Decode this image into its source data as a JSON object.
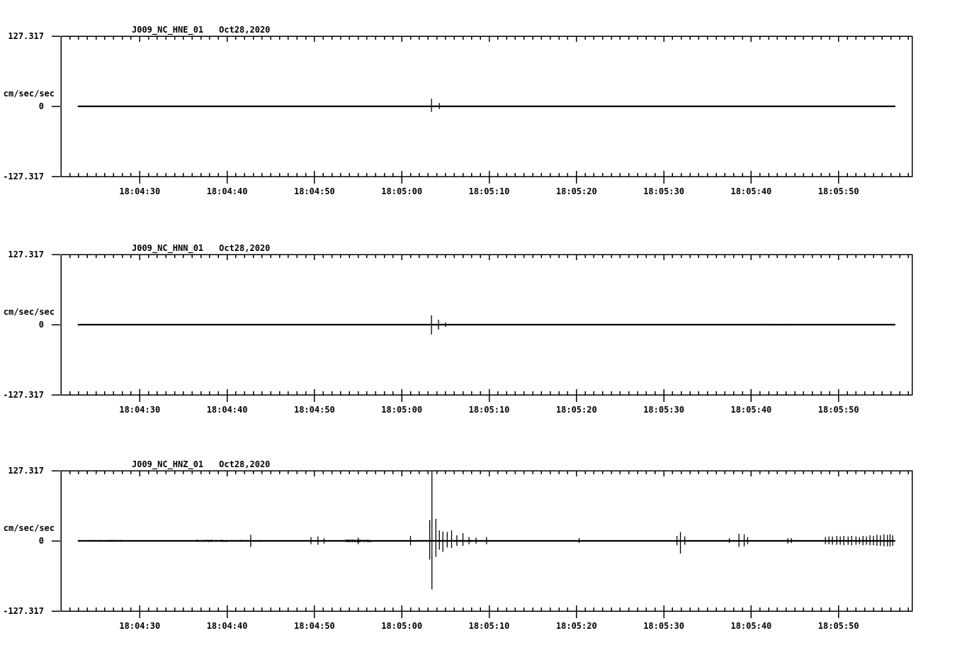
{
  "page": {
    "background": "#ffffff",
    "ink": "#000000"
  },
  "chart_data": [
    {
      "type": "line",
      "title": "J009_NC_HNE_01",
      "date": "Oct28,2020",
      "ylabel": "cm/sec/sec",
      "ylim": [
        -127.317,
        127.317
      ],
      "y_axis": {
        "max_label": "127.317",
        "zero_label": "0",
        "min_label": "-127.317"
      },
      "x_range_seconds": [
        21,
        118
      ],
      "x_tick_seconds": [
        30,
        40,
        50,
        60,
        70,
        80,
        90,
        100,
        110
      ],
      "x_tick_labels": [
        "18:04:30",
        "18:04:40",
        "18:04:50",
        "18:05:00",
        "18:05:10",
        "18:05:20",
        "18:05:30",
        "18:05:40",
        "18:05:50"
      ],
      "trace": {
        "start": 22.9,
        "end": 116.5,
        "baseline": 0
      },
      "spikes": [
        [
          63.4,
          14,
          10
        ],
        [
          64.3,
          6,
          5
        ]
      ],
      "noise": [
        [
          27.5,
          28.5,
          1
        ],
        [
          38.5,
          39.2,
          0.8
        ],
        [
          47,
          47.6,
          0.8
        ],
        [
          63.8,
          65.2,
          1.2
        ]
      ]
    },
    {
      "type": "line",
      "title": "J009_NC_HNN_01",
      "date": "Oct28,2020",
      "ylabel": "cm/sec/sec",
      "ylim": [
        -127.317,
        127.317
      ],
      "y_axis": {
        "max_label": "127.317",
        "zero_label": "0",
        "min_label": "-127.317"
      },
      "x_range_seconds": [
        21,
        118
      ],
      "x_tick_seconds": [
        30,
        40,
        50,
        60,
        70,
        80,
        90,
        100,
        110
      ],
      "x_tick_labels": [
        "18:04:30",
        "18:04:40",
        "18:04:50",
        "18:05:00",
        "18:05:10",
        "18:05:20",
        "18:05:30",
        "18:05:40",
        "18:05:50"
      ],
      "trace": {
        "start": 22.9,
        "end": 116.5,
        "baseline": 0
      },
      "spikes": [
        [
          63.4,
          17,
          18
        ],
        [
          64.2,
          9,
          9
        ],
        [
          65.0,
          4,
          4
        ]
      ],
      "noise": [
        [
          23.5,
          29,
          1.2
        ],
        [
          29,
          31,
          0.8
        ],
        [
          36,
          38,
          0.7
        ],
        [
          50,
          53,
          1
        ],
        [
          56,
          57,
          0.8
        ],
        [
          63.8,
          64.9,
          1.5
        ],
        [
          76,
          83,
          1
        ],
        [
          94.5,
          95.5,
          0.8
        ],
        [
          97,
          98.5,
          1
        ],
        [
          100.5,
          104.5,
          1.6
        ]
      ]
    },
    {
      "type": "line",
      "title": "J009_NC_HNZ_01",
      "date": "Oct28,2020",
      "ylabel": "cm/sec/sec",
      "ylim": [
        -127.317,
        127.317
      ],
      "y_axis": {
        "max_label": "127.317",
        "zero_label": "0",
        "min_label": "-127.317"
      },
      "x_range_seconds": [
        21,
        118
      ],
      "x_tick_seconds": [
        30,
        40,
        50,
        60,
        70,
        80,
        90,
        100,
        110
      ],
      "x_tick_labels": [
        "18:04:30",
        "18:04:40",
        "18:04:50",
        "18:05:00",
        "18:05:10",
        "18:05:20",
        "18:05:30",
        "18:05:40",
        "18:05:50"
      ],
      "trace": {
        "start": 22.9,
        "end": 116.5,
        "baseline": 0
      },
      "spikes": [
        [
          42.7,
          11,
          11
        ],
        [
          49.6,
          7,
          6
        ],
        [
          50.4,
          8,
          7
        ],
        [
          51.1,
          5,
          5
        ],
        [
          55.0,
          6,
          6
        ],
        [
          61.0,
          9,
          8
        ],
        [
          63.2,
          38,
          34
        ],
        [
          63.45,
          127,
          88
        ],
        [
          63.9,
          40,
          29
        ],
        [
          64.3,
          19,
          16
        ],
        [
          64.7,
          17,
          20
        ],
        [
          65.2,
          16,
          12
        ],
        [
          65.7,
          19,
          13
        ],
        [
          66.3,
          10,
          9
        ],
        [
          67.0,
          14,
          9
        ],
        [
          67.7,
          7,
          6
        ],
        [
          68.5,
          6,
          5
        ],
        [
          69.7,
          7,
          6
        ],
        [
          80.3,
          5,
          4
        ],
        [
          91.5,
          9,
          8
        ],
        [
          91.9,
          16,
          23
        ],
        [
          92.4,
          8,
          7
        ],
        [
          97.5,
          5,
          4
        ],
        [
          98.6,
          13,
          11
        ],
        [
          99.2,
          12,
          10
        ],
        [
          99.6,
          7,
          6
        ],
        [
          104.2,
          5,
          5
        ],
        [
          104.6,
          5,
          4
        ],
        [
          108.5,
          7,
          6
        ],
        [
          108.9,
          8,
          6
        ],
        [
          109.3,
          8,
          7
        ],
        [
          109.8,
          9,
          7
        ],
        [
          110.2,
          8,
          7
        ],
        [
          110.6,
          9,
          8
        ],
        [
          111.1,
          8,
          7
        ],
        [
          111.5,
          9,
          8
        ],
        [
          112.0,
          8,
          7
        ],
        [
          112.4,
          7,
          6
        ],
        [
          112.8,
          9,
          8
        ],
        [
          113.2,
          8,
          7
        ],
        [
          113.6,
          10,
          8
        ],
        [
          114.0,
          9,
          8
        ],
        [
          114.4,
          11,
          9
        ],
        [
          114.8,
          10,
          9
        ],
        [
          115.2,
          12,
          10
        ],
        [
          115.6,
          11,
          10
        ],
        [
          115.9,
          12,
          10
        ],
        [
          116.2,
          10,
          9
        ]
      ],
      "noise": [
        [
          24,
          28,
          1.8
        ],
        [
          28,
          31,
          1
        ],
        [
          31,
          33,
          1.2
        ],
        [
          36.5,
          40,
          2.2
        ],
        [
          40,
          44,
          1.8
        ],
        [
          44,
          46,
          1.2
        ],
        [
          48,
          52,
          1.4
        ],
        [
          53.5,
          56.5,
          2.6
        ],
        [
          56.5,
          58,
          1.2
        ],
        [
          62,
          63.1,
          1.4
        ],
        [
          65.8,
          70,
          1.8
        ],
        [
          70,
          72,
          1
        ],
        [
          85,
          86,
          0.8
        ],
        [
          96,
          97,
          0.8
        ],
        [
          106,
          108,
          1.2
        ],
        [
          108.5,
          116.3,
          1.5
        ]
      ]
    }
  ]
}
